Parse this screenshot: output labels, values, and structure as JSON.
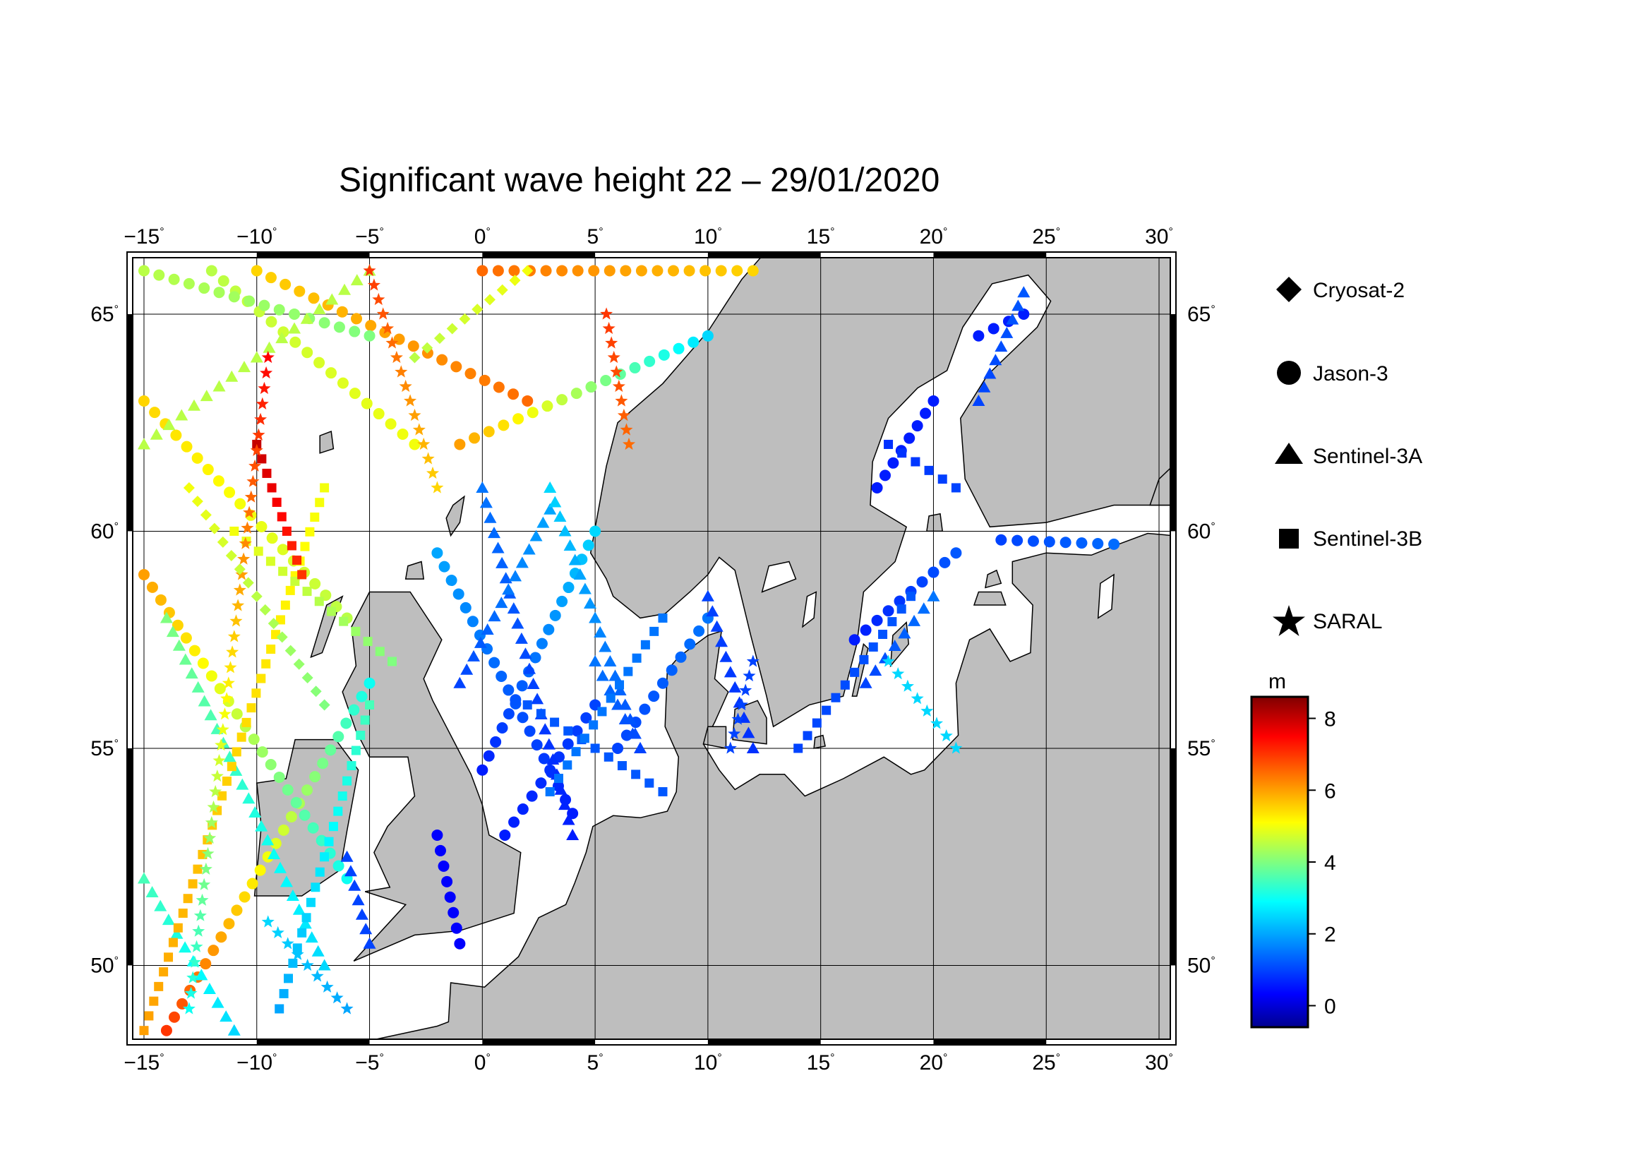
{
  "title": "Significant wave height 22 – 29/01/2020",
  "map": {
    "lon_range": [
      -15.5,
      30.5
    ],
    "lat_range": [
      48.3,
      66.3
    ],
    "lon_ticks": [
      -15,
      -10,
      -5,
      0,
      5,
      10,
      15,
      20,
      25,
      30
    ],
    "lat_ticks": [
      50,
      55,
      60,
      65
    ],
    "lon_tick_labels": [
      "−15",
      "−10",
      "−5",
      "0",
      "5",
      "10",
      "15",
      "20",
      "25",
      "30"
    ],
    "lat_tick_labels": [
      "50",
      "55",
      "60",
      "65"
    ],
    "degree_symbol": "°",
    "ocean_color": "#ffffff",
    "land_color": "#bebebe",
    "grid": true
  },
  "legend": {
    "items": [
      {
        "label": "Cryosat-2",
        "symbol": "diamond"
      },
      {
        "label": "Jason-3",
        "symbol": "circle"
      },
      {
        "label": "Sentinel-3A",
        "symbol": "triangle"
      },
      {
        "label": "Sentinel-3B",
        "symbol": "square"
      },
      {
        "label": "SARAL",
        "symbol": "star"
      }
    ]
  },
  "colorbar": {
    "unit": "m",
    "min": -0.6,
    "max": 8.6,
    "ticks": [
      0,
      2,
      4,
      6,
      8
    ],
    "tick_labels": [
      "0",
      "2",
      "4",
      "6",
      "8"
    ],
    "colormap": [
      "#00008f",
      "#0000ff",
      "#00ffff",
      "#ffff00",
      "#ff0000",
      "#800000"
    ]
  },
  "chart_data": {
    "type": "scatter",
    "title": "Significant wave height 22 – 29/01/2020",
    "xlabel": "",
    "ylabel": "",
    "xlim": [
      -15.5,
      30.5
    ],
    "ylim": [
      48.3,
      66.3
    ],
    "value_unit": "m",
    "series": [
      {
        "name": "Jason-3",
        "symbol": "circle",
        "tracks": [
          {
            "from": [
              -14.0,
              48.5
            ],
            "to": [
              -5.0,
              56.5
            ],
            "hs": [
              7.0,
              3.0
            ]
          },
          {
            "from": [
              -15.0,
              59.0
            ],
            "to": [
              -6.0,
              52.0
            ],
            "hs": [
              6.0,
              3.0
            ]
          },
          {
            "from": [
              -15.0,
              63.0
            ],
            "to": [
              -6.0,
              58.0
            ],
            "hs": [
              5.5,
              4.5
            ]
          },
          {
            "from": [
              -12.0,
              66.0
            ],
            "to": [
              -3.0,
              62.0
            ],
            "hs": [
              4.5,
              5.0
            ]
          },
          {
            "from": [
              -1.0,
              62.0
            ],
            "to": [
              10.0,
              64.5
            ],
            "hs": [
              6.0,
              2.5
            ]
          },
          {
            "from": [
              -10.0,
              66.0
            ],
            "to": [
              2.0,
              63.0
            ],
            "hs": [
              5.5,
              6.5
            ]
          },
          {
            "from": [
              0.0,
              66.0
            ],
            "to": [
              12.0,
              66.0
            ],
            "hs": [
              6.5,
              5.5
            ]
          },
          {
            "from": [
              -15.0,
              66.0
            ],
            "to": [
              -5.0,
              64.5
            ],
            "hs": [
              4.5,
              4.0
            ]
          },
          {
            "from": [
              -2.0,
              59.5
            ],
            "to": [
              4.0,
              53.5
            ],
            "hs": [
              2.0,
              0.6
            ]
          },
          {
            "from": [
              0.0,
              54.5
            ],
            "to": [
              5.0,
              60.0
            ],
            "hs": [
              0.6,
              2.5
            ]
          },
          {
            "from": [
              1.0,
              53.0
            ],
            "to": [
              5.0,
              56.0
            ],
            "hs": [
              0.6,
              1.0
            ]
          },
          {
            "from": [
              -2.0,
              53.0
            ],
            "to": [
              -1.0,
              50.5
            ],
            "hs": [
              0.3,
              0.3
            ]
          },
          {
            "from": [
              17.5,
              61.0
            ],
            "to": [
              20.0,
              63.0
            ],
            "hs": [
              0.6,
              0.6
            ]
          },
          {
            "from": [
              16.5,
              57.5
            ],
            "to": [
              21.0,
              59.5
            ],
            "hs": [
              0.6,
              1.2
            ]
          },
          {
            "from": [
              22.0,
              64.5
            ],
            "to": [
              24.0,
              65.0
            ],
            "hs": [
              0.6,
              0.6
            ]
          },
          {
            "from": [
              23.0,
              59.8
            ],
            "to": [
              28.0,
              59.7
            ],
            "hs": [
              1.0,
              1.4
            ]
          },
          {
            "from": [
              6.0,
              55.0
            ],
            "to": [
              10.0,
              58.0
            ],
            "hs": [
              1.0,
              1.5
            ]
          }
        ]
      },
      {
        "name": "Sentinel-3A",
        "symbol": "triangle",
        "tracks": [
          {
            "from": [
              -15.0,
              62.0
            ],
            "to": [
              -5.0,
              66.0
            ],
            "hs": [
              4.5,
              4.5
            ]
          },
          {
            "from": [
              -14.0,
              58.0
            ],
            "to": [
              -7.0,
              50.0
            ],
            "hs": [
              4.0,
              2.5
            ]
          },
          {
            "from": [
              -11.0,
              48.5
            ],
            "to": [
              -15.0,
              52.0
            ],
            "hs": [
              2.5,
              3.5
            ]
          },
          {
            "from": [
              0.0,
              61.0
            ],
            "to": [
              4.0,
              53.0
            ],
            "hs": [
              1.5,
              0.6
            ]
          },
          {
            "from": [
              -1.0,
              56.5
            ],
            "to": [
              3.0,
              60.5
            ],
            "hs": [
              1.0,
              2.0
            ]
          },
          {
            "from": [
              3.0,
              61.0
            ],
            "to": [
              7.0,
              55.0
            ],
            "hs": [
              2.5,
              1.0
            ]
          },
          {
            "from": [
              10.0,
              58.5
            ],
            "to": [
              12.0,
              55.0
            ],
            "hs": [
              1.0,
              0.8
            ]
          },
          {
            "from": [
              17.0,
              56.5
            ],
            "to": [
              20.0,
              58.5
            ],
            "hs": [
              1.0,
              1.5
            ]
          },
          {
            "from": [
              22.0,
              63.0
            ],
            "to": [
              24.0,
              65.5
            ],
            "hs": [
              1.0,
              1.2
            ]
          },
          {
            "from": [
              -6.0,
              52.5
            ],
            "to": [
              -5.0,
              50.5
            ],
            "hs": [
              1.0,
              1.0
            ]
          },
          {
            "from": [
              5.0,
              57.0
            ],
            "to": [
              7.0,
              55.0
            ],
            "hs": [
              1.5,
              1.0
            ]
          }
        ]
      },
      {
        "name": "Sentinel-3B",
        "symbol": "square",
        "tracks": [
          {
            "from": [
              -15.0,
              48.5
            ],
            "to": [
              -7.0,
              61.0
            ],
            "hs": [
              6.0,
              5.0
            ]
          },
          {
            "from": [
              -11.0,
              60.0
            ],
            "to": [
              -4.0,
              57.0
            ],
            "hs": [
              5.0,
              4.0
            ]
          },
          {
            "from": [
              -9.0,
              49.0
            ],
            "to": [
              -5.0,
              56.0
            ],
            "hs": [
              2.0,
              3.5
            ]
          },
          {
            "from": [
              2.0,
              56.0
            ],
            "to": [
              8.0,
              54.0
            ],
            "hs": [
              1.2,
              1.2
            ]
          },
          {
            "from": [
              3.0,
              54.0
            ],
            "to": [
              8.0,
              58.0
            ],
            "hs": [
              1.5,
              1.5
            ]
          },
          {
            "from": [
              14.0,
              55.0
            ],
            "to": [
              19.0,
              58.5
            ],
            "hs": [
              1.0,
              1.2
            ]
          },
          {
            "from": [
              18.0,
              62.0
            ],
            "to": [
              21.0,
              61.0
            ],
            "hs": [
              0.8,
              1.0
            ]
          },
          {
            "from": [
              -10.0,
              62.0
            ],
            "to": [
              -8.0,
              59.0
            ],
            "hs": [
              8.0,
              7.0
            ]
          }
        ]
      },
      {
        "name": "SARAL",
        "symbol": "star",
        "tracks": [
          {
            "from": [
              -13.0,
              49.0
            ],
            "to": [
              -9.5,
              64.0
            ],
            "hs": [
              3.0,
              7.5
            ]
          },
          {
            "from": [
              -5.0,
              66.0
            ],
            "to": [
              -2.0,
              61.0
            ],
            "hs": [
              7.0,
              5.5
            ]
          },
          {
            "from": [
              5.5,
              65.0
            ],
            "to": [
              6.5,
              62.0
            ],
            "hs": [
              7.0,
              6.5
            ]
          },
          {
            "from": [
              -9.5,
              51.0
            ],
            "to": [
              -6.0,
              49.0
            ],
            "hs": [
              2.5,
              2.0
            ]
          },
          {
            "from": [
              18.0,
              57.0
            ],
            "to": [
              21.0,
              55.0
            ],
            "hs": [
              2.5,
              2.5
            ]
          },
          {
            "from": [
              11.0,
              55.0
            ],
            "to": [
              12.0,
              57.0
            ],
            "hs": [
              1.0,
              1.0
            ]
          }
        ]
      },
      {
        "name": "Cryosat-2",
        "symbol": "diamond",
        "tracks": [
          {
            "from": [
              -13.0,
              61.0
            ],
            "to": [
              -7.0,
              56.0
            ],
            "hs": [
              5.0,
              4.0
            ]
          },
          {
            "from": [
              -3.0,
              64.0
            ],
            "to": [
              2.0,
              66.0
            ],
            "hs": [
              4.5,
              5.0
            ]
          }
        ]
      }
    ]
  }
}
